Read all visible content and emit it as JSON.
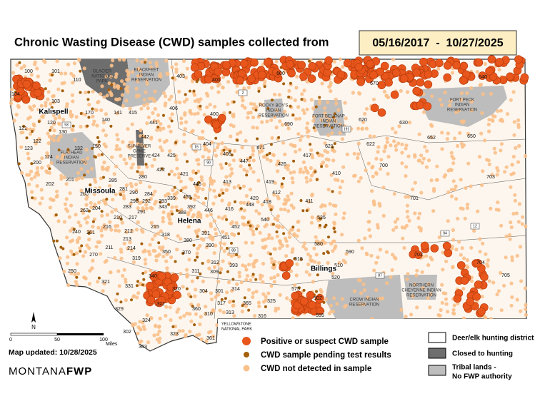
{
  "header": {
    "title": "Chronic Wasting Disease (CWD) samples collected from",
    "date_range": "05/16/2017  -  10/27/2025"
  },
  "legend": {
    "samples": [
      "Positive or suspect CWD sample",
      "CWD sample pending test results",
      "CWD not detected in sample"
    ],
    "areas": [
      [
        "Deer/elk hunting district"
      ],
      [
        "Closed to hunting"
      ],
      [
        "Tribal lands -",
        "No FWP authority"
      ]
    ]
  },
  "yellowstone": [
    "YELLOWSTONE",
    "NATIONAL PARK"
  ],
  "scale": {
    "ticks": [
      "0",
      "50",
      "100"
    ],
    "unit": "Miles",
    "north": "N"
  },
  "footer": {
    "updated": "Map updated: 10/28/2025",
    "brand_light": "MONTANA",
    "brand_bold": "FWP"
  },
  "places": [
    "Kalispell",
    "Missoula",
    "Helena",
    "Billings"
  ],
  "reservations": [
    [
      "GLACIER",
      "NATIONAL",
      "PARK"
    ],
    [
      "BLACKFEET",
      "INDIAN",
      "RESERVATION"
    ],
    [
      "FORT PECK",
      "INDIAN",
      "RESERVATION"
    ],
    [
      "FORT BELKNAP",
      "INDIAN",
      "RESERVATION"
    ],
    [
      "ROCKY BOY'S",
      "INDIAN",
      "RESERVATION"
    ],
    [
      "FLATHEAD",
      "INDIAN",
      "RESERVATION"
    ],
    [
      "CROW INDIAN",
      "RESERVATION"
    ],
    [
      "NORTHERN",
      "CHEYENNE INDIAN",
      "RESERVATION"
    ],
    [
      "SUN RIVER",
      "GAME",
      "PRESERVE"
    ]
  ],
  "highways": [
    "2",
    "15",
    "90",
    "94",
    "93",
    "191",
    "87",
    "12",
    "89"
  ],
  "districts": [
    "100",
    "101",
    "110",
    "104",
    "103",
    "170",
    "120",
    "140",
    "141",
    "121",
    "130",
    "122",
    "123",
    "132",
    "150",
    "124",
    "200",
    "201",
    "202",
    "260",
    "285",
    "281",
    "290",
    "284",
    "292",
    "298",
    "283",
    "204",
    "262",
    "210",
    "217",
    "291",
    "293",
    "343",
    "339",
    "388",
    "392",
    "455",
    "446",
    "445",
    "421",
    "422",
    "280",
    "425",
    "424",
    "441",
    "442",
    "415",
    "406",
    "403",
    "401",
    "400",
    "404",
    "405",
    "447",
    "471",
    "426",
    "417",
    "419",
    "413",
    "420",
    "418",
    "448",
    "416",
    "412",
    "411",
    "410",
    "621",
    "622",
    "700",
    "701",
    "703",
    "650",
    "652",
    "630",
    "620",
    "690",
    "600",
    "670",
    "640",
    "540",
    "535",
    "580",
    "452",
    "451",
    "391",
    "380",
    "318",
    "215",
    "216",
    "212",
    "213",
    "214",
    "211",
    "261",
    "240",
    "250",
    "270",
    "319",
    "350",
    "370",
    "390",
    "393",
    "312",
    "311",
    "309",
    "340",
    "331",
    "321",
    "320",
    "304",
    "301",
    "314",
    "317",
    "365",
    "325",
    "575",
    "502",
    "555",
    "590",
    "515",
    "520",
    "510",
    "702",
    "704",
    "705",
    "360",
    "310",
    "313",
    "316",
    "322",
    "324",
    "329",
    "302",
    "323",
    "303",
    "361"
  ]
}
